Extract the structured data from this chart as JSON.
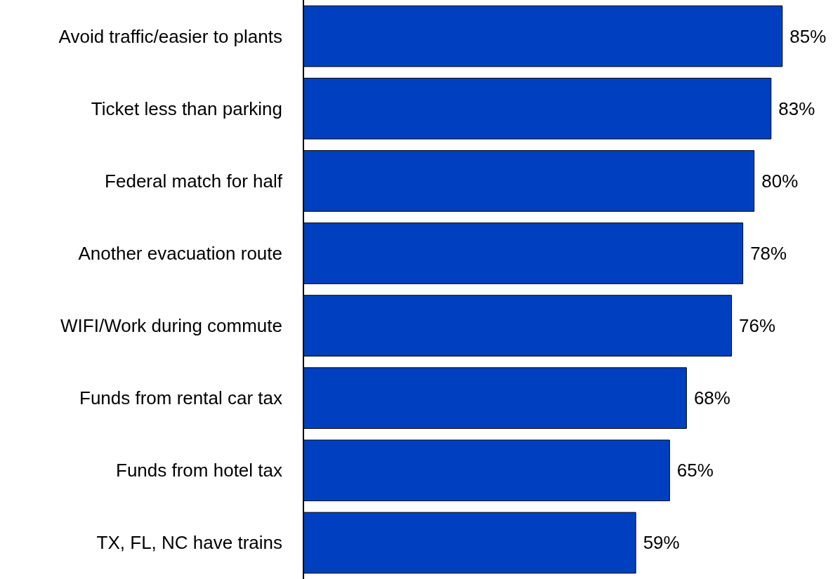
{
  "chart_data": {
    "type": "bar",
    "orientation": "horizontal",
    "categories": [
      "Avoid traffic/easier to plants",
      "Ticket less than parking",
      "Federal match for half",
      "Another evacuation route",
      "WIFI/Work during commute",
      "Funds from rental car tax",
      "Funds from hotel tax",
      "TX, FL, NC have trains"
    ],
    "values": [
      85,
      83,
      80,
      78,
      76,
      68,
      65,
      59
    ],
    "value_labels": [
      "85%",
      "83%",
      "80%",
      "78%",
      "76%",
      "68%",
      "65%",
      "59%"
    ],
    "color": "#0040c0"
  }
}
